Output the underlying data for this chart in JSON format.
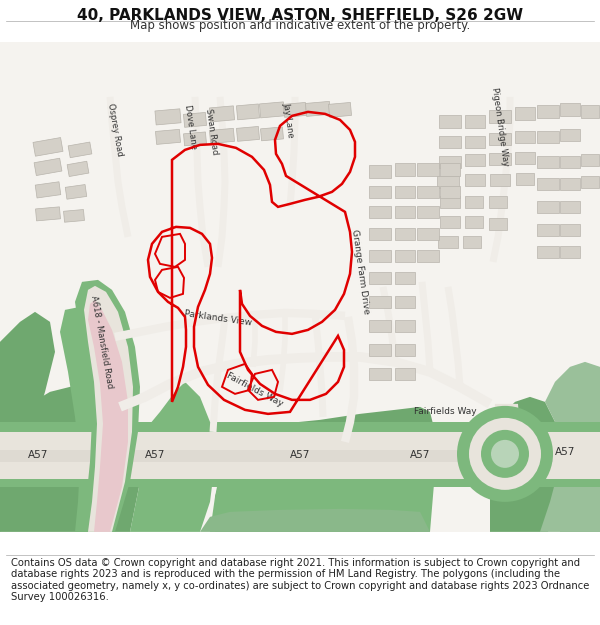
{
  "title": "40, PARKLANDS VIEW, ASTON, SHEFFIELD, S26 2GW",
  "subtitle": "Map shows position and indicative extent of the property.",
  "footer": "Contains OS data © Crown copyright and database right 2021. This information is subject to Crown copyright and database rights 2023 and is reproduced with the permission of HM Land Registry. The polygons (including the associated geometry, namely x, y co-ordinates) are subject to Crown copyright and database rights 2023 Ordnance Survey 100026316.",
  "map_bg": "#f5f3ef",
  "green_dark": "#6fa86f",
  "green_mid": "#7db87d",
  "green_light": "#a8c8a0",
  "road_surface": "#e8e4dc",
  "road_white": "#f0ede8",
  "pink_road": "#e8c8cc",
  "building_fill": "#d4d0c8",
  "building_edge": "#b8b4ac",
  "red_line": "#e00000",
  "text_dark": "#222222",
  "text_road": "#444444",
  "title_fontsize": 11,
  "subtitle_fontsize": 8.5,
  "footer_fontsize": 7.2
}
